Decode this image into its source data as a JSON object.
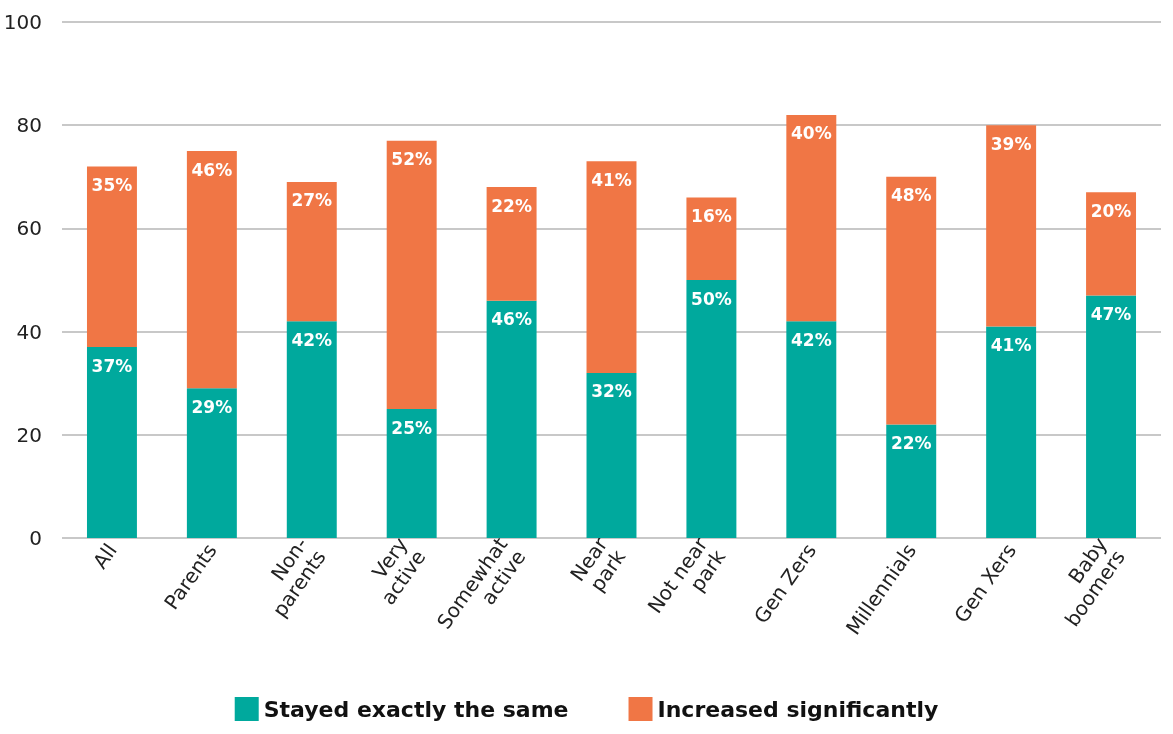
{
  "chart_data": {
    "type": "bar",
    "stacked": true,
    "categories": [
      "All",
      "Parents",
      "Non-\nparents",
      "Very\nactive",
      "Somewhat\nactive",
      "Near\npark",
      "Not near\npark",
      "Gen Zers",
      "Millennials",
      "Gen Xers",
      "Baby\nboomers"
    ],
    "series": [
      {
        "name": "Stayed exactly the same",
        "color": "#00a99d",
        "values": [
          37,
          29,
          42,
          25,
          46,
          32,
          50,
          42,
          22,
          41,
          47
        ],
        "value_labels": [
          "37%",
          "29%",
          "42%",
          "25%",
          "46%",
          "32%",
          "50%",
          "42%",
          "22%",
          "41%",
          "47%"
        ]
      },
      {
        "name": "Increased significantly",
        "color": "#f07645",
        "values": [
          35,
          46,
          27,
          52,
          22,
          41,
          16,
          40,
          48,
          39,
          20
        ],
        "value_labels": [
          "35%",
          "46%",
          "27%",
          "52%",
          "22%",
          "41%",
          "16%",
          "40%",
          "48%",
          "39%",
          "20%"
        ]
      }
    ],
    "ylim": [
      0,
      100
    ],
    "yticks": [
      0,
      20,
      40,
      60,
      80,
      100
    ],
    "grid": "y",
    "legend": "bottom"
  }
}
